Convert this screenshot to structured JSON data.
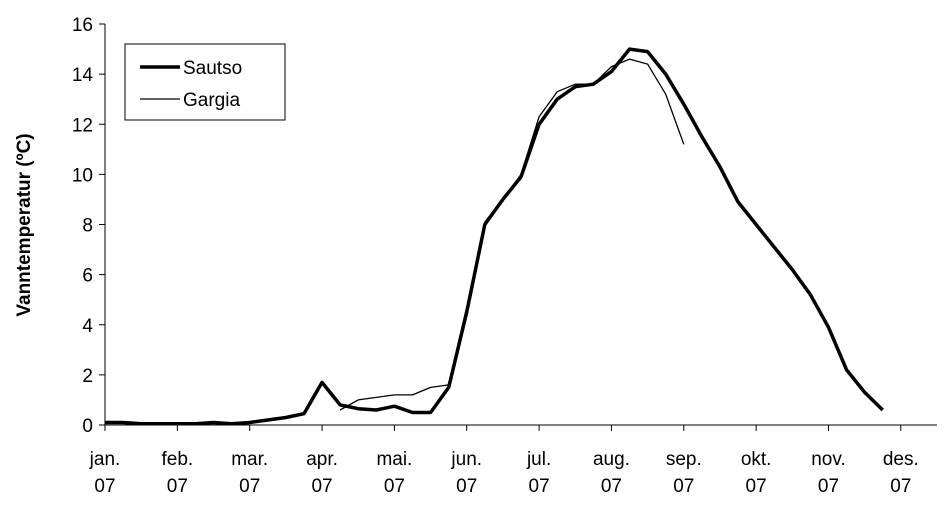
{
  "chart_data": {
    "type": "line",
    "y_label": "Vanntemperatur (ºC)",
    "x": [
      "jan. 07",
      null,
      null,
      null,
      "feb. 07",
      null,
      null,
      null,
      "mar. 07",
      null,
      null,
      null,
      "apr. 07",
      null,
      null,
      null,
      "mai. 07",
      null,
      null,
      null,
      "jun. 07",
      null,
      null,
      null,
      "jul. 07",
      null,
      null,
      null,
      "aug. 07",
      null,
      null,
      null,
      "sep. 07",
      null,
      null,
      null,
      "okt. 07",
      null,
      null,
      null,
      "nov. 07",
      null,
      null,
      null,
      "des. 07",
      null,
      null
    ],
    "series": [
      {
        "name": "Sautso",
        "color": "#000000",
        "width": 3.5,
        "values": [
          0.1,
          0.1,
          0.05,
          0.05,
          0.05,
          0.05,
          0.1,
          0.05,
          0.1,
          0.2,
          0.3,
          0.45,
          1.7,
          0.8,
          0.65,
          0.6,
          0.75,
          0.5,
          0.5,
          1.5,
          4.5,
          8.0,
          9.0,
          9.9,
          12.0,
          13.0,
          13.5,
          13.6,
          14.1,
          15.0,
          14.9,
          14.0,
          12.8,
          11.5,
          10.3,
          8.9,
          8.0,
          7.1,
          6.2,
          5.2,
          3.9,
          2.2,
          1.3,
          0.6,
          null,
          null,
          null
        ]
      },
      {
        "name": "Gargia",
        "color": "#000000",
        "width": 1.3,
        "values": [
          null,
          null,
          null,
          null,
          null,
          null,
          null,
          null,
          null,
          null,
          null,
          null,
          null,
          0.6,
          1.0,
          1.1,
          1.2,
          1.2,
          1.5,
          1.6,
          4.7,
          8.1,
          9.0,
          10.0,
          12.3,
          13.3,
          13.6,
          13.6,
          14.3,
          14.6,
          14.4,
          13.2,
          11.2,
          null,
          null,
          null,
          null,
          null,
          null,
          null,
          null,
          null,
          null,
          null,
          null,
          null,
          null
        ]
      }
    ],
    "ylim": [
      0,
      16
    ],
    "yticks": [
      0,
      2,
      4,
      6,
      8,
      10,
      12,
      14,
      16
    ],
    "legend": "top-left"
  }
}
